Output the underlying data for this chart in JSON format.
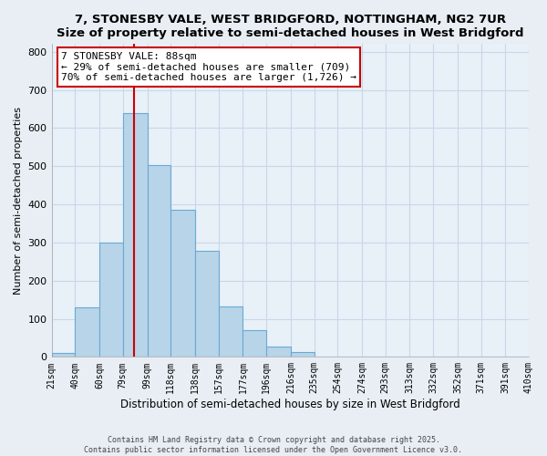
{
  "title": "7, STONESBY VALE, WEST BRIDGFORD, NOTTINGHAM, NG2 7UR",
  "subtitle": "Size of property relative to semi-detached houses in West Bridgford",
  "xlabel": "Distribution of semi-detached houses by size in West Bridgford",
  "ylabel": "Number of semi-detached properties",
  "bin_labels": [
    "21sqm",
    "40sqm",
    "60sqm",
    "79sqm",
    "99sqm",
    "118sqm",
    "138sqm",
    "157sqm",
    "177sqm",
    "196sqm",
    "216sqm",
    "235sqm",
    "254sqm",
    "274sqm",
    "293sqm",
    "313sqm",
    "332sqm",
    "352sqm",
    "371sqm",
    "391sqm",
    "410sqm"
  ],
  "bar_values": [
    10,
    130,
    300,
    638,
    503,
    385,
    278,
    133,
    70,
    28,
    13,
    0,
    0,
    0,
    0,
    0,
    0,
    0,
    0,
    0
  ],
  "bin_edges": [
    21,
    40,
    60,
    79,
    99,
    118,
    138,
    157,
    177,
    196,
    216,
    235,
    254,
    274,
    293,
    313,
    332,
    352,
    371,
    391,
    410
  ],
  "bar_color": "#b8d4e8",
  "bar_edge_color": "#6aaad4",
  "vline_x": 88,
  "vline_color": "#cc0000",
  "annotation_title": "7 STONESBY VALE: 88sqm",
  "annotation_line1": "← 29% of semi-detached houses are smaller (709)",
  "annotation_line2": "70% of semi-detached houses are larger (1,726) →",
  "annotation_box_edge": "#cc0000",
  "ylim": [
    0,
    820
  ],
  "yticks": [
    0,
    100,
    200,
    300,
    400,
    500,
    600,
    700,
    800
  ],
  "footer1": "Contains HM Land Registry data © Crown copyright and database right 2025.",
  "footer2": "Contains public sector information licensed under the Open Government Licence v3.0.",
  "bg_color": "#e8eef4",
  "plot_bg_color": "#e8f0f8",
  "grid_color": "#c8d8e8"
}
